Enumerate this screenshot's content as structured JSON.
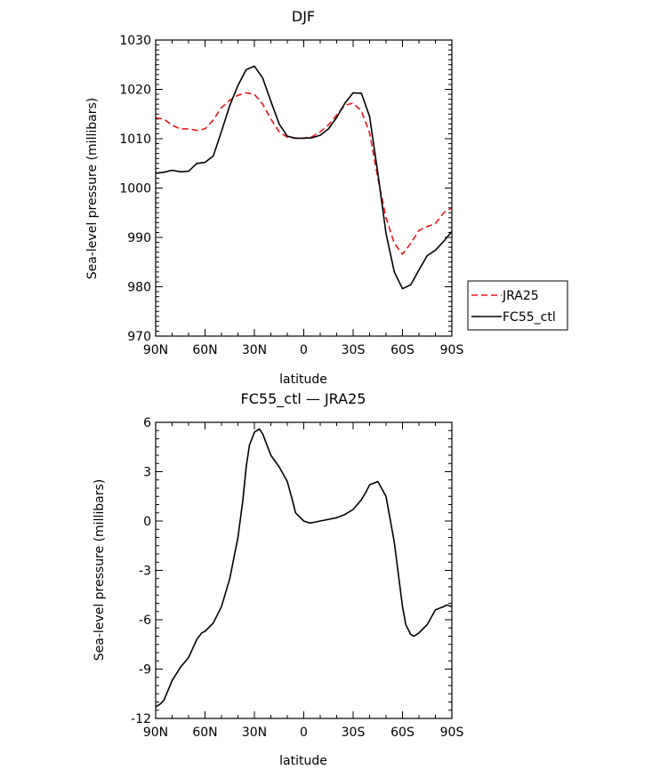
{
  "chart_data": [
    {
      "type": "line",
      "title": "DJF",
      "xlabel": "latitude",
      "ylabel": "Sea-level pressure (millibars)",
      "xlim": [
        90,
        -90
      ],
      "ylim": [
        970,
        1030
      ],
      "x_ticks": [
        90,
        60,
        30,
        0,
        -30,
        -60,
        -90
      ],
      "x_tick_labels": [
        "90N",
        "60N",
        "30N",
        "0",
        "30S",
        "60S",
        "90S"
      ],
      "y_ticks": [
        970,
        980,
        990,
        1000,
        1010,
        1020,
        1030
      ],
      "y_tick_labels": [
        "970",
        "980",
        "990",
        "1000",
        "1010",
        "1020",
        "1030"
      ],
      "grid": false,
      "legend_position": "right",
      "series": [
        {
          "name": "JRA25",
          "color": "#e8141c",
          "dash": "dashed",
          "x": [
            90,
            85,
            80,
            75,
            70,
            65,
            60,
            55,
            50,
            45,
            40,
            35,
            30,
            25,
            20,
            15,
            10,
            5,
            0,
            -5,
            -10,
            -15,
            -20,
            -25,
            -30,
            -35,
            -40,
            -45,
            -50,
            -55,
            -60,
            -65,
            -70,
            -75,
            -80,
            -85,
            -90
          ],
          "values": [
            1014.2,
            1014.0,
            1012.7,
            1012.0,
            1012.0,
            1011.7,
            1012.0,
            1013.8,
            1016.3,
            1017.8,
            1018.8,
            1019.3,
            1019.0,
            1017.0,
            1014.0,
            1011.4,
            1010.3,
            1010.1,
            1010.1,
            1010.4,
            1011.4,
            1012.8,
            1014.8,
            1016.8,
            1017.2,
            1015.6,
            1011.2,
            1002.0,
            994.0,
            988.8,
            986.6,
            988.8,
            991.4,
            992.2,
            992.8,
            995.0,
            996.0
          ]
        },
        {
          "name": "FC55_ctl",
          "color": "#000000",
          "dash": "solid",
          "x": [
            90,
            85,
            80,
            75,
            70,
            65,
            60,
            55,
            50,
            45,
            40,
            35,
            30,
            25,
            20,
            15,
            10,
            5,
            0,
            -5,
            -10,
            -15,
            -20,
            -25,
            -30,
            -35,
            -40,
            -45,
            -50,
            -55,
            -60,
            -65,
            -70,
            -75,
            -80,
            -85,
            -90
          ],
          "values": [
            1003.0,
            1003.2,
            1003.6,
            1003.3,
            1003.4,
            1005.0,
            1005.2,
            1006.5,
            1011.5,
            1016.7,
            1020.8,
            1024.0,
            1024.7,
            1022.3,
            1017.6,
            1013.0,
            1010.5,
            1010.1,
            1010.1,
            1010.2,
            1010.7,
            1012.0,
            1014.3,
            1017.2,
            1019.3,
            1019.2,
            1014.5,
            1003.0,
            990.8,
            983.0,
            979.6,
            980.4,
            983.4,
            986.3,
            987.4,
            989.2,
            991.2
          ]
        }
      ]
    },
    {
      "type": "line",
      "title": "FC55_ctl — JRA25",
      "xlabel": "latitude",
      "ylabel": "Sea-level pressure (millibars)",
      "xlim": [
        90,
        -90
      ],
      "ylim": [
        -12,
        6
      ],
      "x_ticks": [
        90,
        60,
        30,
        0,
        -30,
        -60,
        -90
      ],
      "x_tick_labels": [
        "90N",
        "60N",
        "30N",
        "0",
        "30S",
        "60S",
        "90S"
      ],
      "y_ticks": [
        -12,
        -9,
        -6,
        -3,
        0,
        3,
        6
      ],
      "y_tick_labels": [
        "-12",
        "-9",
        "-6",
        "-3",
        "0",
        "3",
        "6"
      ],
      "grid": false,
      "series": [
        {
          "color": "#000000",
          "dash": "solid",
          "x": [
            90,
            87,
            85,
            80,
            75,
            70,
            65,
            62,
            60,
            55,
            50,
            45,
            40,
            37,
            35,
            33,
            30,
            27,
            25,
            20,
            15,
            10,
            7,
            5,
            0,
            -3,
            -5,
            -10,
            -15,
            -20,
            -25,
            -30,
            -35,
            -38,
            -40,
            -45,
            -50,
            -55,
            -60,
            -62,
            -65,
            -67,
            -70,
            -75,
            -80,
            -85,
            -87,
            -90
          ],
          "values": [
            -11.3,
            -11.1,
            -10.9,
            -9.7,
            -8.9,
            -8.3,
            -7.2,
            -6.8,
            -6.7,
            -6.2,
            -5.2,
            -3.5,
            -1.0,
            1.3,
            3.3,
            4.6,
            5.4,
            5.6,
            5.3,
            4.0,
            3.3,
            2.4,
            1.3,
            0.5,
            0.0,
            -0.1,
            -0.1,
            0.0,
            0.1,
            0.2,
            0.4,
            0.7,
            1.3,
            1.8,
            2.2,
            2.4,
            1.5,
            -1.3,
            -5.2,
            -6.3,
            -6.9,
            -7.0,
            -6.8,
            -6.3,
            -5.4,
            -5.2,
            -5.1,
            -5.2
          ]
        }
      ]
    }
  ]
}
